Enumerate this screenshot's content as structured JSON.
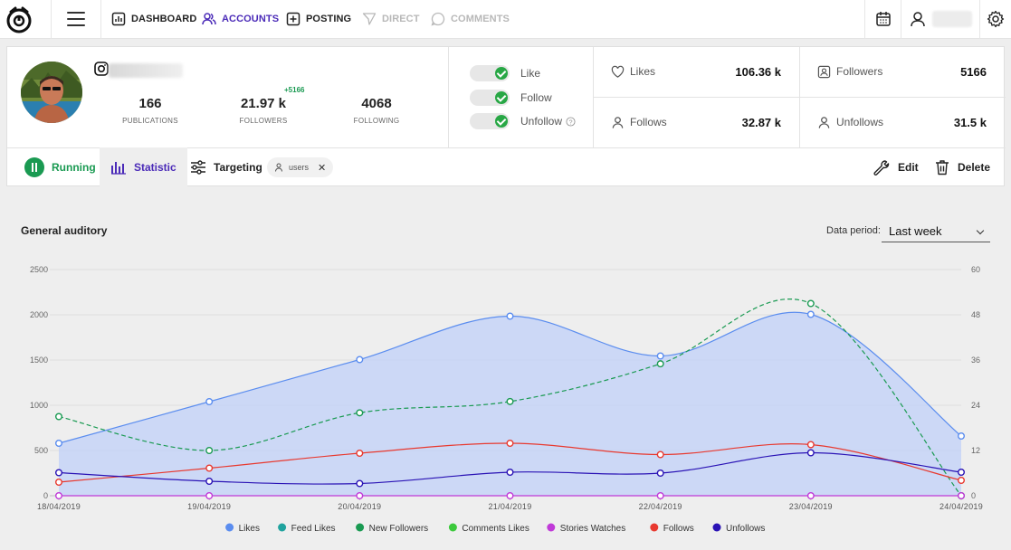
{
  "nav": {
    "dashboard": "DASHBOARD",
    "accounts": "ACCOUNTS",
    "posting": "POSTING",
    "direct": "DIRECT",
    "comments": "COMMENTS"
  },
  "profile": {
    "publications_value": "166",
    "publications_label": "PUBLICATIONS",
    "followers_value": "21.97 k",
    "followers_label": "FOLLOWERS",
    "followers_delta": "+5166",
    "following_value": "4068",
    "following_label": "FOLLOWING"
  },
  "toggles": [
    {
      "label": "Like",
      "on": true
    },
    {
      "label": "Follow",
      "on": true
    },
    {
      "label": "Unfollow",
      "on": true
    }
  ],
  "kpis": {
    "likes_label": "Likes",
    "likes_value": "106.36 k",
    "followers_label": "Followers",
    "followers_value": "5166",
    "follows_label": "Follows",
    "follows_value": "32.87 k",
    "unfollows_label": "Unfollows",
    "unfollows_value": "31.5 k"
  },
  "tabs": {
    "running": "Running",
    "statistic": "Statistic",
    "targeting": "Targeting",
    "chip": "users",
    "edit": "Edit",
    "delete": "Delete"
  },
  "chart_header": {
    "title": "General auditory",
    "period_label": "Data period:",
    "period_value": "Last week"
  },
  "colors": {
    "accent": "#4b2bb8",
    "running_green": "#1a9a52"
  },
  "chart_data": {
    "type": "area",
    "x": [
      "18/04/2019",
      "19/04/2019",
      "20/04/2019",
      "21/04/2019",
      "22/04/2019",
      "23/04/2019",
      "24/04/2019"
    ],
    "ylim_left": [
      0,
      2500
    ],
    "yticks_left": [
      0,
      500,
      1000,
      1500,
      2000,
      2500
    ],
    "ylim_right": [
      0,
      60
    ],
    "yticks_right": [
      0,
      12,
      24,
      36,
      48,
      60
    ],
    "grid": true,
    "legend_position": "bottom",
    "series": [
      {
        "name": "Likes",
        "axis": "left",
        "color": "#5b8def",
        "style": "area",
        "values": [
          580,
          1040,
          1505,
          1985,
          1545,
          2005,
          660
        ]
      },
      {
        "name": "Feed Likes",
        "axis": "right",
        "color": "#20a39e",
        "style": "none",
        "values": [
          0,
          0,
          0,
          0,
          0,
          0,
          0
        ]
      },
      {
        "name": "New Followers",
        "axis": "right",
        "color": "#1a9a52",
        "style": "dashed",
        "values": [
          21,
          12,
          22,
          25,
          35,
          51,
          0
        ]
      },
      {
        "name": "Comments Likes",
        "axis": "left",
        "color": "#3cc93c",
        "style": "none",
        "values": [
          0,
          0,
          0,
          0,
          0,
          0,
          0
        ]
      },
      {
        "name": "Stories Watches",
        "axis": "left",
        "color": "#c03ad8",
        "style": "line",
        "values": [
          0,
          0,
          0,
          0,
          0,
          0,
          0
        ]
      },
      {
        "name": "Follows",
        "axis": "left",
        "color": "#e8392f",
        "style": "line",
        "values": [
          150,
          305,
          470,
          580,
          455,
          565,
          170
        ]
      },
      {
        "name": "Unfollows",
        "axis": "left",
        "color": "#2a13b5",
        "style": "line",
        "values": [
          255,
          160,
          135,
          260,
          250,
          475,
          260
        ]
      }
    ]
  }
}
